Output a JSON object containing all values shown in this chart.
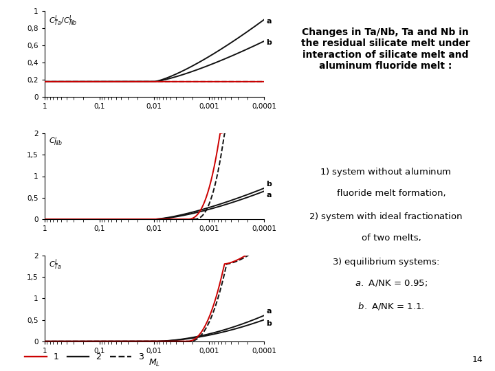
{
  "title_text": "Changes in Ta/Nb, Ta and Nb in\nthe residual silicate melt under\ninteraction of silicate melt and\naluminum fluoride melt :",
  "page_number": "14",
  "x_tick_labels": [
    "1",
    "0,1",
    "0,01",
    "0,001",
    "0,0001"
  ],
  "plot1_ylabel": "C_{Ta}^L/C_{Nb}^L",
  "plot2_ylabel": "C_{Nb}^{\\prime}",
  "plot3_ylabel": "C_{Ta}^L",
  "plot1_yticks": [
    0,
    0.2,
    0.4,
    0.6,
    0.8,
    1
  ],
  "plot1_yticklabels": [
    "0",
    "0,2",
    "0,4",
    "0,6",
    "0,8",
    "1"
  ],
  "plot23_yticks": [
    0,
    0.5,
    1,
    1.5,
    2
  ],
  "plot23_yticklabels": [
    "0",
    "0,5",
    "1",
    "1,5",
    "2"
  ],
  "color_1": "#cc0000",
  "color_2": "#111111",
  "background_color": "#ffffff",
  "lw": 1.4
}
